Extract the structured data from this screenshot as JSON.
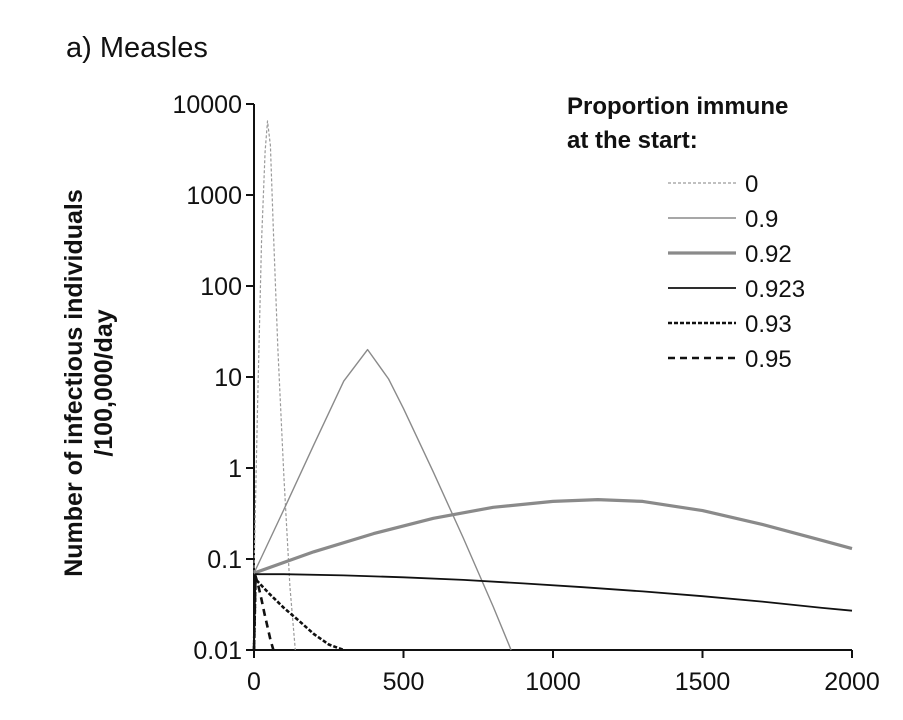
{
  "chart_data": {
    "type": "line",
    "title": "a) Measles",
    "ylabel": [
      "Number of infectious individuals",
      "/100,000/day"
    ],
    "xlabel": "",
    "xlim": [
      0,
      2000
    ],
    "ylim": [
      0.01,
      10000
    ],
    "yscale": "log",
    "xticks": [
      0,
      500,
      1000,
      1500,
      2000
    ],
    "xtick_labels": [
      "0",
      "500",
      "1000",
      "1500",
      "2000"
    ],
    "yticks": [
      0.01,
      0.1,
      1,
      10,
      100,
      1000,
      10000
    ],
    "ytick_labels": [
      "0.01",
      "0.1",
      "1",
      "10",
      "100",
      "1000",
      "10000"
    ],
    "grid": false,
    "legend": {
      "title": [
        "Proportion immune",
        "at the start:"
      ],
      "placement": "top-right"
    },
    "series": [
      {
        "name": "0",
        "color": "#9a9a9a",
        "style": "dotted-thin",
        "x": [
          0,
          12,
          25,
          37,
          45,
          55,
          65,
          80,
          100,
          120,
          138
        ],
        "y": [
          0.07,
          5,
          300,
          3000,
          6500,
          3500,
          400,
          20,
          0.8,
          0.05,
          0.01
        ]
      },
      {
        "name": "0.9",
        "color": "#8a8a8a",
        "style": "solid-thin",
        "x": [
          0,
          100,
          200,
          300,
          380,
          450,
          500,
          600,
          700,
          800,
          860
        ],
        "y": [
          0.07,
          0.35,
          1.8,
          9,
          20,
          9.5,
          4.5,
          0.9,
          0.17,
          0.03,
          0.01
        ]
      },
      {
        "name": "0.92",
        "color": "#8a8a8a",
        "style": "solid-thick",
        "x": [
          0,
          200,
          400,
          600,
          800,
          1000,
          1150,
          1300,
          1500,
          1700,
          1900,
          2000
        ],
        "y": [
          0.07,
          0.12,
          0.19,
          0.28,
          0.37,
          0.43,
          0.45,
          0.43,
          0.34,
          0.24,
          0.16,
          0.13
        ]
      },
      {
        "name": "0.923",
        "color": "#111111",
        "style": "solid-medium",
        "x": [
          0,
          5,
          100,
          300,
          500,
          700,
          900,
          1100,
          1300,
          1500,
          1700,
          1900,
          2000
        ],
        "y": [
          0.01,
          0.068,
          0.068,
          0.066,
          0.063,
          0.059,
          0.054,
          0.049,
          0.044,
          0.039,
          0.034,
          0.029,
          0.027
        ]
      },
      {
        "name": "0.93",
        "color": "#111111",
        "style": "dashed-dense",
        "x": [
          0,
          5,
          50,
          100,
          150,
          200,
          250,
          300
        ],
        "y": [
          0.01,
          0.06,
          0.042,
          0.029,
          0.021,
          0.015,
          0.0115,
          0.01
        ]
      },
      {
        "name": "0.95",
        "color": "#111111",
        "style": "dashed-long",
        "x": [
          0,
          5,
          15,
          25,
          35,
          45,
          55,
          65
        ],
        "y": [
          0.01,
          0.065,
          0.05,
          0.036,
          0.025,
          0.018,
          0.013,
          0.01
        ]
      }
    ]
  }
}
